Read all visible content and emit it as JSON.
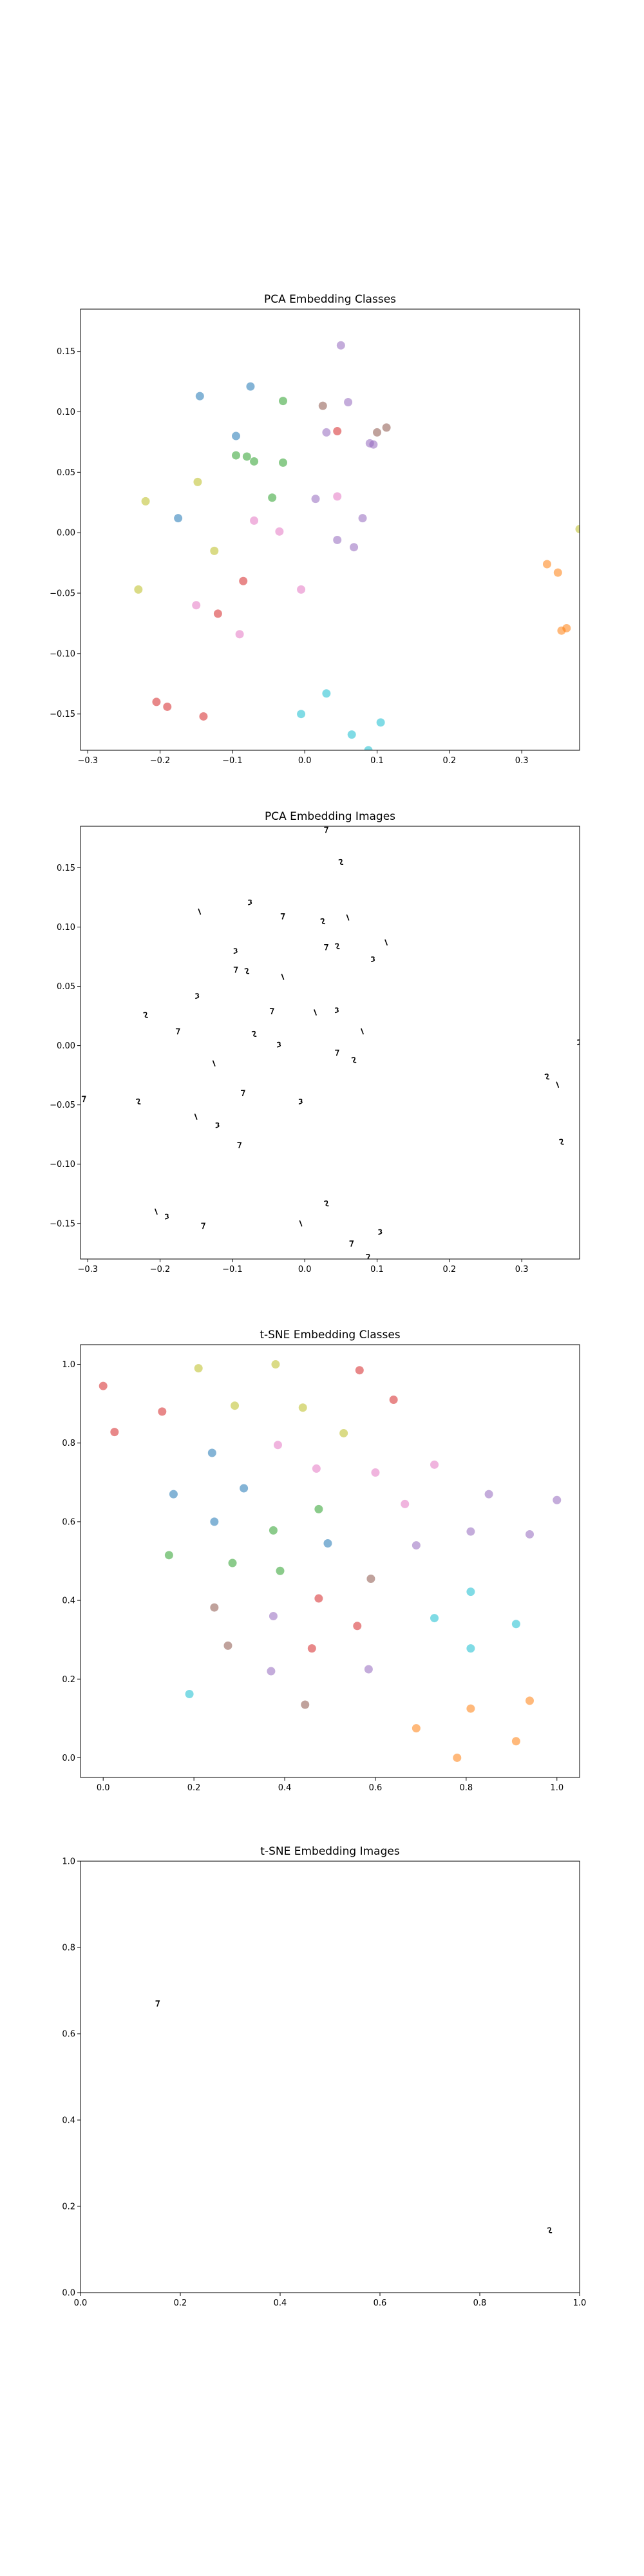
{
  "chart_data": [
    {
      "type": "scatter",
      "title": "PCA Embedding Classes",
      "xlabel": "",
      "ylabel": "",
      "xlim": [
        -0.31,
        0.38
      ],
      "ylim": [
        -0.18,
        0.185
      ],
      "xticks": [
        -0.3,
        -0.2,
        -0.1,
        0.0,
        0.1,
        0.2,
        0.3
      ],
      "xtick_labels": [
        "−0.3",
        "−0.2",
        "−0.1",
        "0.0",
        "0.1",
        "0.2",
        "0.3"
      ],
      "yticks": [
        -0.15,
        -0.1,
        -0.05,
        0.0,
        0.05,
        0.1,
        0.15
      ],
      "ytick_labels": [
        "−0.15",
        "−0.10",
        "−0.05",
        "0.00",
        "0.05",
        "0.10",
        "0.15"
      ],
      "grid": false,
      "marker": "circle",
      "points": [
        {
          "x": 0.05,
          "y": 0.155,
          "color": "#9467bd"
        },
        {
          "x": -0.145,
          "y": 0.113,
          "color": "#1f77b4"
        },
        {
          "x": -0.075,
          "y": 0.121,
          "color": "#1f77b4"
        },
        {
          "x": -0.095,
          "y": 0.08,
          "color": "#1f77b4"
        },
        {
          "x": -0.175,
          "y": 0.012,
          "color": "#1f77b4"
        },
        {
          "x": -0.03,
          "y": 0.109,
          "color": "#2ca02c"
        },
        {
          "x": -0.095,
          "y": 0.064,
          "color": "#2ca02c"
        },
        {
          "x": -0.08,
          "y": 0.063,
          "color": "#2ca02c"
        },
        {
          "x": -0.07,
          "y": 0.059,
          "color": "#2ca02c"
        },
        {
          "x": -0.045,
          "y": 0.029,
          "color": "#2ca02c"
        },
        {
          "x": -0.03,
          "y": 0.058,
          "color": "#2ca02c"
        },
        {
          "x": 0.025,
          "y": 0.105,
          "color": "#8c564b"
        },
        {
          "x": 0.06,
          "y": 0.108,
          "color": "#9467bd"
        },
        {
          "x": 0.03,
          "y": 0.083,
          "color": "#9467bd"
        },
        {
          "x": 0.045,
          "y": 0.084,
          "color": "#d62728"
        },
        {
          "x": 0.1,
          "y": 0.083,
          "color": "#8c564b"
        },
        {
          "x": 0.113,
          "y": 0.087,
          "color": "#8c564b"
        },
        {
          "x": 0.09,
          "y": 0.074,
          "color": "#9467bd"
        },
        {
          "x": 0.095,
          "y": 0.073,
          "color": "#9467bd"
        },
        {
          "x": -0.22,
          "y": 0.026,
          "color": "#bcbd22"
        },
        {
          "x": -0.148,
          "y": 0.042,
          "color": "#bcbd22"
        },
        {
          "x": -0.125,
          "y": -0.015,
          "color": "#bcbd22"
        },
        {
          "x": -0.23,
          "y": -0.047,
          "color": "#bcbd22"
        },
        {
          "x": 0.015,
          "y": 0.028,
          "color": "#9467bd"
        },
        {
          "x": 0.045,
          "y": 0.03,
          "color": "#e377c2"
        },
        {
          "x": 0.08,
          "y": 0.012,
          "color": "#9467bd"
        },
        {
          "x": -0.07,
          "y": 0.01,
          "color": "#e377c2"
        },
        {
          "x": -0.035,
          "y": 0.001,
          "color": "#e377c2"
        },
        {
          "x": 0.045,
          "y": -0.006,
          "color": "#9467bd"
        },
        {
          "x": 0.068,
          "y": -0.012,
          "color": "#9467bd"
        },
        {
          "x": -0.085,
          "y": -0.04,
          "color": "#d62728"
        },
        {
          "x": -0.005,
          "y": -0.047,
          "color": "#e377c2"
        },
        {
          "x": -0.15,
          "y": -0.06,
          "color": "#e377c2"
        },
        {
          "x": -0.12,
          "y": -0.067,
          "color": "#d62728"
        },
        {
          "x": -0.09,
          "y": -0.084,
          "color": "#e377c2"
        },
        {
          "x": 0.38,
          "y": 0.003,
          "color": "#bcbd22"
        },
        {
          "x": 0.335,
          "y": -0.026,
          "color": "#ff7f0e"
        },
        {
          "x": 0.35,
          "y": -0.033,
          "color": "#ff7f0e"
        },
        {
          "x": 0.355,
          "y": -0.081,
          "color": "#ff7f0e"
        },
        {
          "x": 0.362,
          "y": -0.079,
          "color": "#ff7f0e"
        },
        {
          "x": -0.205,
          "y": -0.14,
          "color": "#d62728"
        },
        {
          "x": -0.19,
          "y": -0.144,
          "color": "#d62728"
        },
        {
          "x": -0.14,
          "y": -0.152,
          "color": "#d62728"
        },
        {
          "x": 0.03,
          "y": -0.133,
          "color": "#17becf"
        },
        {
          "x": -0.005,
          "y": -0.15,
          "color": "#17becf"
        },
        {
          "x": 0.105,
          "y": -0.157,
          "color": "#17becf"
        },
        {
          "x": 0.065,
          "y": -0.167,
          "color": "#17becf"
        },
        {
          "x": 0.088,
          "y": -0.18,
          "color": "#17becf"
        }
      ]
    },
    {
      "type": "scatter",
      "title": "PCA Embedding Images",
      "xlabel": "",
      "ylabel": "",
      "xlim": [
        -0.31,
        0.38
      ],
      "ylim": [
        -0.18,
        0.185
      ],
      "xticks": [
        -0.3,
        -0.2,
        -0.1,
        0.0,
        0.1,
        0.2,
        0.3
      ],
      "xtick_labels": [
        "−0.3",
        "−0.2",
        "−0.1",
        "0.0",
        "0.1",
        "0.2",
        "0.3"
      ],
      "yticks": [
        -0.15,
        -0.1,
        -0.05,
        0.0,
        0.05,
        0.1,
        0.15
      ],
      "ytick_labels": [
        "−0.15",
        "−0.10",
        "−0.05",
        "0.00",
        "0.05",
        "0.10",
        "0.15"
      ],
      "grid": false,
      "marker": "glyph-image",
      "points": [
        {
          "x": 0.03,
          "y": 0.182
        },
        {
          "x": 0.05,
          "y": 0.155
        },
        {
          "x": -0.145,
          "y": 0.113
        },
        {
          "x": -0.075,
          "y": 0.121
        },
        {
          "x": -0.03,
          "y": 0.109
        },
        {
          "x": 0.025,
          "y": 0.105
        },
        {
          "x": 0.06,
          "y": 0.108
        },
        {
          "x": -0.095,
          "y": 0.08
        },
        {
          "x": 0.03,
          "y": 0.083
        },
        {
          "x": 0.045,
          "y": 0.084
        },
        {
          "x": 0.113,
          "y": 0.087
        },
        {
          "x": 0.095,
          "y": 0.073
        },
        {
          "x": -0.095,
          "y": 0.064
        },
        {
          "x": -0.08,
          "y": 0.063
        },
        {
          "x": -0.03,
          "y": 0.058
        },
        {
          "x": -0.148,
          "y": 0.042
        },
        {
          "x": -0.045,
          "y": 0.029
        },
        {
          "x": -0.22,
          "y": 0.026
        },
        {
          "x": 0.015,
          "y": 0.028
        },
        {
          "x": 0.045,
          "y": 0.03
        },
        {
          "x": -0.175,
          "y": 0.012
        },
        {
          "x": -0.07,
          "y": 0.01
        },
        {
          "x": 0.08,
          "y": 0.012
        },
        {
          "x": -0.035,
          "y": 0.001
        },
        {
          "x": 0.045,
          "y": -0.006
        },
        {
          "x": 0.068,
          "y": -0.012
        },
        {
          "x": -0.125,
          "y": -0.015
        },
        {
          "x": 0.38,
          "y": 0.003
        },
        {
          "x": -0.085,
          "y": -0.04
        },
        {
          "x": 0.335,
          "y": -0.026
        },
        {
          "x": 0.35,
          "y": -0.033
        },
        {
          "x": -0.005,
          "y": -0.047
        },
        {
          "x": -0.305,
          "y": -0.045
        },
        {
          "x": -0.23,
          "y": -0.047
        },
        {
          "x": -0.15,
          "y": -0.06
        },
        {
          "x": -0.12,
          "y": -0.067
        },
        {
          "x": -0.09,
          "y": -0.084
        },
        {
          "x": 0.355,
          "y": -0.081
        },
        {
          "x": -0.205,
          "y": -0.14
        },
        {
          "x": -0.19,
          "y": -0.144
        },
        {
          "x": -0.14,
          "y": -0.152
        },
        {
          "x": 0.03,
          "y": -0.133
        },
        {
          "x": -0.005,
          "y": -0.15
        },
        {
          "x": 0.105,
          "y": -0.157
        },
        {
          "x": 0.065,
          "y": -0.167
        },
        {
          "x": 0.088,
          "y": -0.178
        }
      ]
    },
    {
      "type": "scatter",
      "title": "t-SNE Embedding Classes",
      "xlabel": "",
      "ylabel": "",
      "xlim": [
        -0.05,
        1.05
      ],
      "ylim": [
        -0.05,
        1.05
      ],
      "xticks": [
        0.0,
        0.2,
        0.4,
        0.6,
        0.8,
        1.0
      ],
      "xtick_labels": [
        "0.0",
        "0.2",
        "0.4",
        "0.6",
        "0.8",
        "1.0"
      ],
      "yticks": [
        0.0,
        0.2,
        0.4,
        0.6,
        0.8,
        1.0
      ],
      "ytick_labels": [
        "0.0",
        "0.2",
        "0.4",
        "0.6",
        "0.8",
        "1.0"
      ],
      "grid": false,
      "marker": "circle",
      "points": [
        {
          "x": 0.0,
          "y": 0.945,
          "color": "#d62728"
        },
        {
          "x": 0.025,
          "y": 0.828,
          "color": "#d62728"
        },
        {
          "x": 0.13,
          "y": 0.88,
          "color": "#d62728"
        },
        {
          "x": 0.565,
          "y": 0.985,
          "color": "#d62728"
        },
        {
          "x": 0.64,
          "y": 0.91,
          "color": "#d62728"
        },
        {
          "x": 0.21,
          "y": 0.99,
          "color": "#bcbd22"
        },
        {
          "x": 0.38,
          "y": 1.0,
          "color": "#bcbd22"
        },
        {
          "x": 0.29,
          "y": 0.895,
          "color": "#bcbd22"
        },
        {
          "x": 0.44,
          "y": 0.89,
          "color": "#bcbd22"
        },
        {
          "x": 0.53,
          "y": 0.825,
          "color": "#bcbd22"
        },
        {
          "x": 0.385,
          "y": 0.795,
          "color": "#e377c2"
        },
        {
          "x": 0.24,
          "y": 0.775,
          "color": "#1f77b4"
        },
        {
          "x": 0.47,
          "y": 0.735,
          "color": "#e377c2"
        },
        {
          "x": 0.6,
          "y": 0.725,
          "color": "#e377c2"
        },
        {
          "x": 0.73,
          "y": 0.745,
          "color": "#e377c2"
        },
        {
          "x": 0.31,
          "y": 0.685,
          "color": "#1f77b4"
        },
        {
          "x": 0.155,
          "y": 0.67,
          "color": "#1f77b4"
        },
        {
          "x": 0.85,
          "y": 0.67,
          "color": "#9467bd"
        },
        {
          "x": 0.665,
          "y": 0.645,
          "color": "#e377c2"
        },
        {
          "x": 1.0,
          "y": 0.655,
          "color": "#9467bd"
        },
        {
          "x": 0.475,
          "y": 0.632,
          "color": "#2ca02c"
        },
        {
          "x": 0.245,
          "y": 0.6,
          "color": "#1f77b4"
        },
        {
          "x": 0.375,
          "y": 0.578,
          "color": "#2ca02c"
        },
        {
          "x": 0.81,
          "y": 0.575,
          "color": "#9467bd"
        },
        {
          "x": 0.94,
          "y": 0.568,
          "color": "#9467bd"
        },
        {
          "x": 0.495,
          "y": 0.545,
          "color": "#1f77b4"
        },
        {
          "x": 0.69,
          "y": 0.54,
          "color": "#9467bd"
        },
        {
          "x": 0.145,
          "y": 0.515,
          "color": "#2ca02c"
        },
        {
          "x": 0.285,
          "y": 0.495,
          "color": "#2ca02c"
        },
        {
          "x": 0.39,
          "y": 0.475,
          "color": "#2ca02c"
        },
        {
          "x": 0.59,
          "y": 0.455,
          "color": "#8c564b"
        },
        {
          "x": 0.81,
          "y": 0.422,
          "color": "#17becf"
        },
        {
          "x": 0.475,
          "y": 0.405,
          "color": "#d62728"
        },
        {
          "x": 0.245,
          "y": 0.382,
          "color": "#8c564b"
        },
        {
          "x": 0.375,
          "y": 0.36,
          "color": "#9467bd"
        },
        {
          "x": 0.73,
          "y": 0.355,
          "color": "#17becf"
        },
        {
          "x": 0.91,
          "y": 0.34,
          "color": "#17becf"
        },
        {
          "x": 0.56,
          "y": 0.335,
          "color": "#d62728"
        },
        {
          "x": 0.275,
          "y": 0.285,
          "color": "#8c564b"
        },
        {
          "x": 0.46,
          "y": 0.278,
          "color": "#d62728"
        },
        {
          "x": 0.81,
          "y": 0.278,
          "color": "#17becf"
        },
        {
          "x": 0.37,
          "y": 0.22,
          "color": "#9467bd"
        },
        {
          "x": 0.585,
          "y": 0.225,
          "color": "#9467bd"
        },
        {
          "x": 0.19,
          "y": 0.162,
          "color": "#17becf"
        },
        {
          "x": 0.445,
          "y": 0.135,
          "color": "#8c564b"
        },
        {
          "x": 0.94,
          "y": 0.145,
          "color": "#ff7f0e"
        },
        {
          "x": 0.81,
          "y": 0.125,
          "color": "#ff7f0e"
        },
        {
          "x": 0.69,
          "y": 0.075,
          "color": "#ff7f0e"
        },
        {
          "x": 0.91,
          "y": 0.042,
          "color": "#ff7f0e"
        },
        {
          "x": 0.78,
          "y": 0.0,
          "color": "#ff7f0e"
        }
      ]
    },
    {
      "type": "scatter",
      "title": "t-SNE Embedding Images",
      "xlabel": "",
      "ylabel": "",
      "xlim": [
        0.0,
        1.0
      ],
      "ylim": [
        0.0,
        1.0
      ],
      "xticks": [
        0.0,
        0.2,
        0.4,
        0.6,
        0.8,
        1.0
      ],
      "xtick_labels": [
        "0.0",
        "0.2",
        "0.4",
        "0.6",
        "0.8",
        "1.0"
      ],
      "yticks": [
        0.0,
        0.2,
        0.4,
        0.6,
        0.8,
        1.0
      ],
      "ytick_labels": [
        "0.0",
        "0.2",
        "0.4",
        "0.6",
        "0.8",
        "1.0"
      ],
      "grid": false,
      "marker": "glyph-image",
      "points": [
        {
          "x": 0.155,
          "y": 0.67
        },
        {
          "x": 0.94,
          "y": 0.145
        }
      ]
    }
  ]
}
